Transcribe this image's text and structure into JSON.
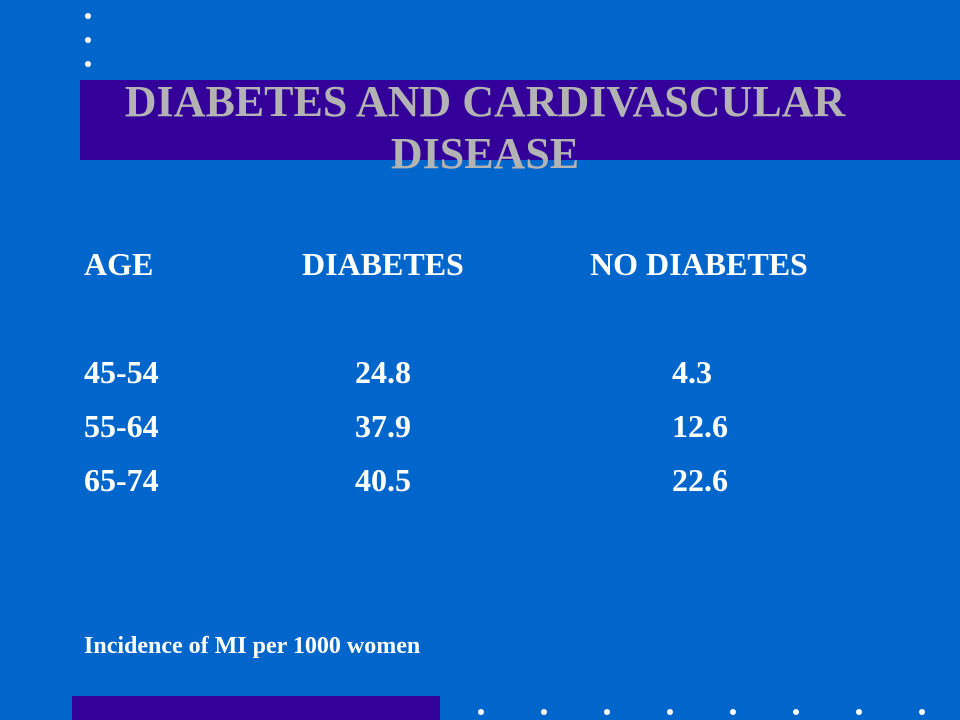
{
  "slide": {
    "title": "DIABETES AND CARDIVASCULAR DISEASE",
    "table": {
      "headers": [
        "AGE",
        "DIABETES",
        "NO DIABETES"
      ],
      "rows": [
        [
          "45-54",
          "24.8",
          "4.3"
        ],
        [
          "55-64",
          "37.9",
          "12.6"
        ],
        [
          "65-74",
          "40.5",
          "22.6"
        ]
      ]
    },
    "caption": "Incidence of MI per 1000 women"
  },
  "colors": {
    "background": "#0066cc",
    "accent_band": "#330099",
    "title_text": "#b3b3b3",
    "body_text": "#ffffff",
    "bullet_dots": "#ffffff"
  }
}
